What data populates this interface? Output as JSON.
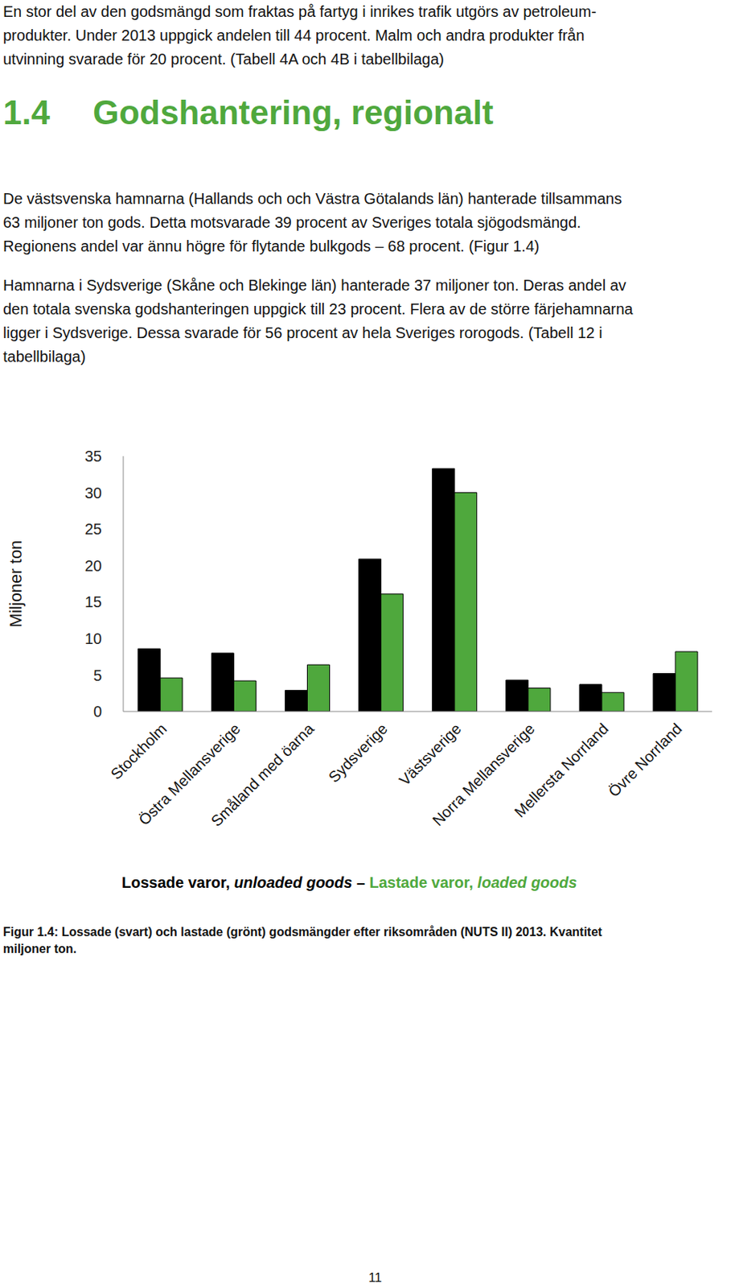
{
  "paragraphs_before": [
    [
      "En stor del av den godsmängd som fraktas på fartyg i inrikes trafik utgörs av petroleum-",
      "produkter. Under 2013 uppgick andelen till 44 procent. Malm och andra produkter från",
      "utvinning svarade för 20 procent. (Tabell 4A och 4B i tabellbilaga)"
    ]
  ],
  "heading": {
    "number": "1.4",
    "text": "Godshantering, regionalt"
  },
  "paragraphs": [
    [
      "De västsvenska hamnarna (Hallands och och Västra Götalands län) hanterade tillsammans",
      "63 miljoner ton gods. Detta motsvarade 39 procent av Sveriges totala sjögodsmängd.",
      "Regionens andel var ännu högre för flytande bulkgods – 68 procent. (Figur 1.4)"
    ],
    [
      "Hamnarna i Sydsverige (Skåne och Blekinge län) hanterade 37 miljoner ton. Deras andel av",
      "den totala svenska godshanteringen uppgick till 23 procent. Flera av de större färjehamnarna",
      "ligger i Sydsverige. Dessa svarade för 56 procent av hela Sveriges rorogods. (Tabell 12 i",
      "tabellbilaga)"
    ]
  ],
  "chart_data": {
    "type": "bar",
    "ylabel": "Miljoner ton",
    "categories": [
      "Stockholm",
      "Östra Mellansverige",
      "Småland med öarna",
      "Sydsverige",
      "Västsverige",
      "Norra Mellansverige",
      "Mellersta Norrland",
      "Övre Norrland"
    ],
    "series": [
      {
        "name": "Lossade varor, unloaded goods",
        "color": "#000000",
        "values": [
          8.6,
          8.0,
          2.9,
          20.9,
          33.3,
          4.3,
          3.7,
          5.2
        ]
      },
      {
        "name": "Lastade varor, loaded goods",
        "color": "#4fa83d",
        "values": [
          4.6,
          4.2,
          6.4,
          16.1,
          30.0,
          3.2,
          2.6,
          8.2
        ]
      }
    ],
    "ylim": [
      0,
      35
    ],
    "yticks": [
      0,
      5,
      10,
      15,
      20,
      25,
      30,
      35
    ],
    "grid": false,
    "legend": "bottom"
  },
  "legend_separator": "–",
  "caption": [
    "Figur 1.4: Lossade (svart) och lastade (grönt) godsmängder efter riksområden (NUTS II) 2013. Kvantitet",
    "miljoner ton."
  ],
  "page_number": "11"
}
